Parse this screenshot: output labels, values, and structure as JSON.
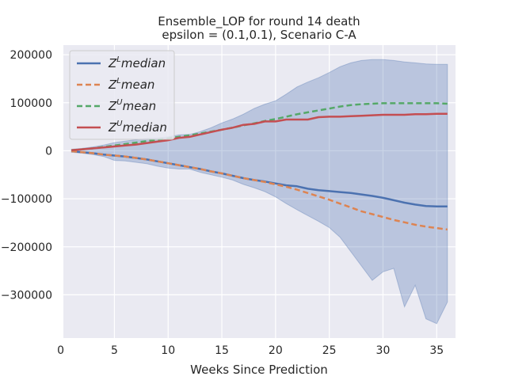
{
  "chart_data": {
    "type": "line",
    "title": "Ensemble_LOP for round 14 death",
    "subtitle": "epsilon = (0.1,0.1), Scenario C-A",
    "xlabel": "Weeks Since Prediction",
    "ylabel": "",
    "xlim": [
      0.25,
      36.75
    ],
    "ylim": [
      -390000,
      220000
    ],
    "x_ticks": [
      0,
      5,
      10,
      15,
      20,
      25,
      30,
      35
    ],
    "y_ticks": [
      200000,
      100000,
      0,
      -100000,
      -200000,
      -300000
    ],
    "y_tick_labels": [
      "200000",
      "100000",
      "0",
      "−100000",
      "−200000",
      "−300000"
    ],
    "grid": true,
    "legend_position": "top-left",
    "x": [
      1,
      2,
      3,
      4,
      5,
      6,
      7,
      8,
      9,
      10,
      11,
      12,
      13,
      14,
      15,
      16,
      17,
      18,
      19,
      20,
      21,
      22,
      23,
      24,
      25,
      26,
      27,
      28,
      29,
      30,
      31,
      32,
      33,
      34,
      35,
      36
    ],
    "series": [
      {
        "name_base": "Z",
        "name_sup": "L",
        "name_rest": "median",
        "color": "#4c72b0",
        "dash": "solid",
        "values": [
          -1000,
          -3000,
          -5000,
          -8000,
          -10000,
          -12000,
          -15000,
          -18000,
          -22000,
          -26000,
          -30000,
          -34000,
          -38000,
          -43000,
          -47000,
          -52000,
          -57000,
          -61000,
          -64000,
          -68000,
          -72000,
          -74000,
          -79000,
          -82000,
          -84000,
          -86000,
          -88000,
          -91000,
          -94000,
          -98000,
          -103000,
          -108000,
          -112000,
          -115000,
          -116000,
          -116000
        ]
      },
      {
        "name_base": "Z",
        "name_sup": "L",
        "name_rest": "mean",
        "color": "#dd8452",
        "dash": "dashed",
        "values": [
          -1000,
          -3000,
          -5000,
          -8000,
          -10000,
          -12000,
          -15000,
          -18000,
          -22000,
          -26000,
          -30000,
          -34000,
          -38000,
          -43000,
          -47000,
          -52000,
          -57000,
          -61000,
          -65000,
          -70000,
          -75000,
          -81000,
          -88000,
          -95000,
          -102000,
          -110000,
          -118000,
          -126000,
          -132000,
          -138000,
          -144000,
          -149000,
          -154000,
          -158000,
          -161000,
          -164000
        ]
      },
      {
        "name_base": "Z",
        "name_sup": "U",
        "name_rest": "mean",
        "color": "#55a868",
        "dash": "dashed",
        "values": [
          1000,
          3000,
          5000,
          8000,
          11000,
          14000,
          17000,
          20000,
          23000,
          26000,
          29000,
          32000,
          36000,
          40000,
          44000,
          48000,
          53000,
          57000,
          62000,
          66000,
          71000,
          76000,
          80000,
          84000,
          88000,
          92000,
          95000,
          97000,
          98000,
          99000,
          99000,
          99000,
          99000,
          99000,
          99000,
          98000
        ]
      },
      {
        "name_base": "Z",
        "name_sup": "U",
        "name_rest": "median",
        "color": "#c44e52",
        "dash": "solid",
        "values": [
          1000,
          3000,
          5000,
          7000,
          9000,
          11000,
          13000,
          16000,
          19000,
          22000,
          27000,
          29000,
          34000,
          39000,
          44000,
          48000,
          54000,
          56000,
          61000,
          61000,
          65000,
          65000,
          65000,
          70000,
          71000,
          71000,
          72000,
          73000,
          74000,
          75000,
          75000,
          75000,
          76000,
          76000,
          77000,
          77000
        ]
      }
    ],
    "band": {
      "color": "#4c72b0",
      "upper": [
        3000,
        5000,
        8000,
        12000,
        17000,
        20000,
        23000,
        26000,
        27000,
        29000,
        33000,
        34000,
        40000,
        48000,
        58000,
        66000,
        76000,
        88000,
        97000,
        104000,
        118000,
        133000,
        143000,
        152000,
        163000,
        175000,
        183000,
        188000,
        190000,
        190000,
        188000,
        185000,
        183000,
        181000,
        180000,
        180000
      ],
      "lower": [
        -3000,
        -5000,
        -8000,
        -12000,
        -20000,
        -21000,
        -24000,
        -27000,
        -32000,
        -36000,
        -38000,
        -38000,
        -45000,
        -50000,
        -55000,
        -61000,
        -70000,
        -77000,
        -85000,
        -96000,
        -110000,
        -123000,
        -135000,
        -147000,
        -160000,
        -180000,
        -210000,
        -240000,
        -270000,
        -252000,
        -245000,
        -325000,
        -280000,
        -350000,
        -360000,
        -315000
      ]
    }
  }
}
